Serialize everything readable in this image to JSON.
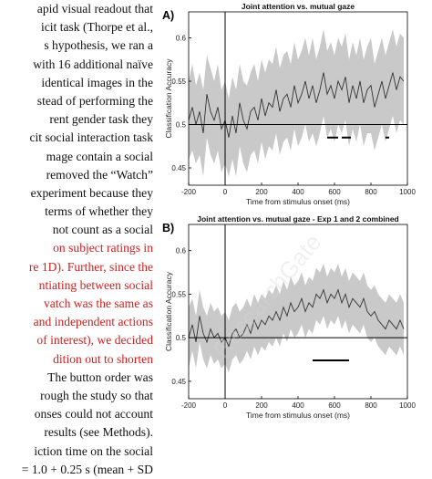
{
  "body_text": {
    "lines": [
      {
        "text": "apid visual readout that",
        "red": false
      },
      {
        "text": "icit task (Thorpe et al.,",
        "red": false
      },
      {
        "text": "s hypothesis, we ran a",
        "red": false
      },
      {
        "text": "with 16 additional naïve",
        "red": false
      },
      {
        "text": "identical images in the",
        "red": false
      },
      {
        "text": "stead of performing the",
        "red": false
      },
      {
        "text": "rent gender task they",
        "red": false
      },
      {
        "text": "cit social interaction task",
        "red": false
      },
      {
        "text": "mage contain a social",
        "red": false
      },
      {
        "text": "removed the “Watch”",
        "red": false
      },
      {
        "text": "experiment because they",
        "red": false
      },
      {
        "text": "terms of whether they",
        "red": false
      },
      {
        "text": "not count as a social",
        "red": false
      },
      {
        "text": "on subject ratings in",
        "red": true
      },
      {
        "text": "re 1D). Further, since the",
        "red": true
      },
      {
        "text": "ntiating between social",
        "red": true
      },
      {
        "text": "vatch was the same as",
        "red": true
      },
      {
        "text": "and independent actions",
        "red": true
      },
      {
        "text": "of interest), we decided",
        "red": true
      },
      {
        "text": "dition out to shorten",
        "red": true
      },
      {
        "text": "The button order was",
        "red": false
      },
      {
        "text": "rough the study so that",
        "red": false
      },
      {
        "text": "onses could not account",
        "red": false
      },
      {
        "text": "results (see Methods).",
        "red": false
      },
      {
        "text": "iction time on the social",
        "red": false
      },
      {
        "text": "= 1.0 + 0.25 s (mean + SD",
        "red": false
      }
    ]
  },
  "watermark": "ResearchGate",
  "chart_data": [
    {
      "type": "line",
      "panel_label": "A)",
      "title": "Joint attention vs. mutual gaze",
      "xlabel": "Time from stimulus onset (ms)",
      "ylabel": "Classification Accuracy",
      "xlim": [
        -200,
        1000
      ],
      "ylim": [
        0.43,
        0.63
      ],
      "xticks": [
        -200,
        0,
        200,
        400,
        600,
        800,
        1000
      ],
      "yticks": [
        0.45,
        0.5,
        0.55,
        0.6
      ],
      "ytick_labels": [
        "0.45",
        "0.5",
        "0.55",
        "0.6"
      ],
      "x": [
        -200,
        -180,
        -160,
        -140,
        -120,
        -100,
        -80,
        -60,
        -40,
        -20,
        0,
        20,
        40,
        60,
        80,
        100,
        120,
        140,
        160,
        180,
        200,
        220,
        240,
        260,
        280,
        300,
        320,
        340,
        360,
        380,
        400,
        420,
        440,
        460,
        480,
        500,
        520,
        540,
        560,
        580,
        600,
        620,
        640,
        660,
        680,
        700,
        720,
        740,
        760,
        780,
        800,
        820,
        840,
        860,
        880,
        900,
        920,
        940,
        960,
        980
      ],
      "mean": [
        0.505,
        0.52,
        0.5,
        0.515,
        0.49,
        0.535,
        0.515,
        0.505,
        0.52,
        0.495,
        0.505,
        0.485,
        0.51,
        0.49,
        0.525,
        0.505,
        0.495,
        0.515,
        0.52,
        0.505,
        0.53,
        0.51,
        0.525,
        0.52,
        0.54,
        0.515,
        0.53,
        0.535,
        0.52,
        0.545,
        0.525,
        0.535,
        0.55,
        0.53,
        0.545,
        0.525,
        0.54,
        0.56,
        0.535,
        0.545,
        0.53,
        0.55,
        0.54,
        0.555,
        0.525,
        0.545,
        0.53,
        0.55,
        0.525,
        0.54,
        0.545,
        0.52,
        0.535,
        0.55,
        0.53,
        0.545,
        0.56,
        0.54,
        0.555,
        0.55
      ],
      "upper": [
        0.55,
        0.57,
        0.545,
        0.56,
        0.54,
        0.58,
        0.565,
        0.55,
        0.57,
        0.54,
        0.55,
        0.53,
        0.555,
        0.54,
        0.57,
        0.55,
        0.545,
        0.56,
        0.57,
        0.55,
        0.575,
        0.56,
        0.575,
        0.57,
        0.59,
        0.565,
        0.58,
        0.585,
        0.57,
        0.595,
        0.575,
        0.585,
        0.6,
        0.58,
        0.6,
        0.575,
        0.59,
        0.61,
        0.585,
        0.595,
        0.58,
        0.6,
        0.59,
        0.605,
        0.575,
        0.595,
        0.58,
        0.6,
        0.575,
        0.59,
        0.6,
        0.57,
        0.585,
        0.6,
        0.58,
        0.595,
        0.61,
        0.59,
        0.605,
        0.6
      ],
      "lower": [
        0.46,
        0.47,
        0.455,
        0.465,
        0.44,
        0.485,
        0.465,
        0.455,
        0.47,
        0.445,
        0.455,
        0.44,
        0.46,
        0.44,
        0.475,
        0.455,
        0.445,
        0.465,
        0.47,
        0.455,
        0.48,
        0.46,
        0.475,
        0.47,
        0.49,
        0.465,
        0.48,
        0.485,
        0.47,
        0.495,
        0.475,
        0.485,
        0.5,
        0.48,
        0.49,
        0.475,
        0.49,
        0.51,
        0.485,
        0.495,
        0.48,
        0.5,
        0.49,
        0.505,
        0.475,
        0.495,
        0.48,
        0.5,
        0.475,
        0.49,
        0.49,
        0.47,
        0.485,
        0.5,
        0.48,
        0.495,
        0.51,
        0.49,
        0.505,
        0.5
      ],
      "chance_level": 0.5,
      "onset_line_x": 0,
      "significance_bars": [
        [
          560,
          620
        ],
        [
          640,
          690
        ],
        [
          880,
          900
        ]
      ],
      "significance_y": 0.485,
      "colors": {
        "band": "#c9c9c9",
        "mean": "#333333",
        "sig": "#000000"
      }
    },
    {
      "type": "line",
      "panel_label": "B)",
      "title": "Joint attention vs. mutual gaze - Exp 1 and 2 combined",
      "xlabel": "Time from stimulus onset (ms)",
      "ylabel": "Classification Accuracy",
      "xlim": [
        -200,
        1000
      ],
      "ylim": [
        0.43,
        0.63
      ],
      "xticks": [
        -200,
        0,
        200,
        400,
        600,
        800,
        1000
      ],
      "yticks": [
        0.45,
        0.5,
        0.55,
        0.6
      ],
      "ytick_labels": [
        "0.45",
        "0.5",
        "0.55",
        "0.6"
      ],
      "x": [
        -200,
        -180,
        -160,
        -140,
        -120,
        -100,
        -80,
        -60,
        -40,
        -20,
        0,
        20,
        40,
        60,
        80,
        100,
        120,
        140,
        160,
        180,
        200,
        220,
        240,
        260,
        280,
        300,
        320,
        340,
        360,
        380,
        400,
        420,
        440,
        460,
        480,
        500,
        520,
        540,
        560,
        580,
        600,
        620,
        640,
        660,
        680,
        700,
        720,
        740,
        760,
        780,
        800,
        820,
        840,
        860,
        880,
        900,
        920,
        940,
        960,
        980
      ],
      "mean": [
        0.5,
        0.515,
        0.495,
        0.525,
        0.505,
        0.495,
        0.51,
        0.5,
        0.505,
        0.495,
        0.5,
        0.49,
        0.505,
        0.51,
        0.5,
        0.505,
        0.515,
        0.505,
        0.52,
        0.51,
        0.52,
        0.515,
        0.525,
        0.52,
        0.53,
        0.52,
        0.535,
        0.525,
        0.54,
        0.53,
        0.535,
        0.545,
        0.53,
        0.54,
        0.535,
        0.55,
        0.545,
        0.555,
        0.54,
        0.55,
        0.545,
        0.555,
        0.54,
        0.55,
        0.535,
        0.545,
        0.54,
        0.535,
        0.545,
        0.53,
        0.525,
        0.53,
        0.52,
        0.515,
        0.51,
        0.52,
        0.515,
        0.51,
        0.52,
        0.51
      ],
      "upper": [
        0.535,
        0.545,
        0.525,
        0.555,
        0.535,
        0.525,
        0.54,
        0.53,
        0.535,
        0.525,
        0.53,
        0.52,
        0.535,
        0.54,
        0.53,
        0.535,
        0.545,
        0.535,
        0.55,
        0.54,
        0.55,
        0.545,
        0.555,
        0.55,
        0.56,
        0.55,
        0.565,
        0.555,
        0.57,
        0.56,
        0.565,
        0.575,
        0.56,
        0.57,
        0.565,
        0.58,
        0.575,
        0.585,
        0.57,
        0.58,
        0.575,
        0.585,
        0.57,
        0.58,
        0.565,
        0.575,
        0.57,
        0.565,
        0.575,
        0.56,
        0.555,
        0.56,
        0.55,
        0.545,
        0.54,
        0.55,
        0.545,
        0.54,
        0.55,
        0.54
      ],
      "lower": [
        0.465,
        0.485,
        0.465,
        0.495,
        0.475,
        0.465,
        0.48,
        0.47,
        0.475,
        0.465,
        0.47,
        0.46,
        0.475,
        0.48,
        0.47,
        0.475,
        0.485,
        0.475,
        0.49,
        0.48,
        0.49,
        0.485,
        0.495,
        0.49,
        0.5,
        0.49,
        0.505,
        0.495,
        0.51,
        0.5,
        0.505,
        0.515,
        0.5,
        0.51,
        0.505,
        0.52,
        0.515,
        0.525,
        0.51,
        0.52,
        0.515,
        0.525,
        0.51,
        0.52,
        0.505,
        0.515,
        0.51,
        0.505,
        0.515,
        0.5,
        0.495,
        0.5,
        0.49,
        0.485,
        0.48,
        0.49,
        0.485,
        0.48,
        0.49,
        0.48
      ],
      "chance_level": 0.5,
      "onset_line_x": 0,
      "significance_bars": [
        [
          480,
          680
        ]
      ],
      "significance_y": 0.474,
      "colors": {
        "band": "#c9c9c9",
        "mean": "#333333",
        "sig": "#000000"
      }
    }
  ]
}
